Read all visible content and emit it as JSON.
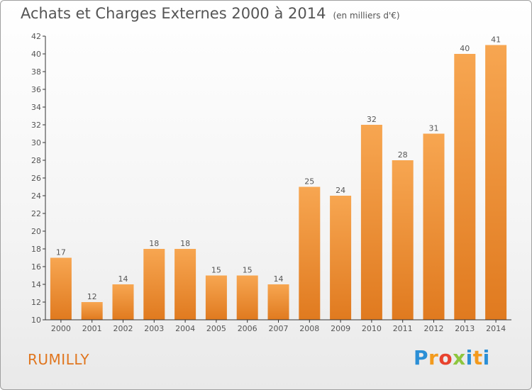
{
  "chart_data": {
    "type": "bar",
    "title": "Achats et Charges Externes 2000 à 2014",
    "subtitle": "(en milliers d'€)",
    "categories": [
      "2000",
      "2001",
      "2002",
      "2003",
      "2004",
      "2005",
      "2006",
      "2007",
      "2008",
      "2009",
      "2010",
      "2011",
      "2012",
      "2013",
      "2014"
    ],
    "values": [
      17,
      12,
      14,
      18,
      18,
      15,
      15,
      14,
      25,
      24,
      32,
      28,
      31,
      40,
      41
    ],
    "ylim": [
      10,
      42
    ],
    "yticks": [
      10,
      12,
      14,
      16,
      18,
      20,
      22,
      24,
      26,
      28,
      30,
      32,
      34,
      36,
      38,
      40,
      42
    ],
    "xlabel": "",
    "ylabel": "",
    "grid": false,
    "colors": {
      "bar_top": "#f7a651",
      "bar_bottom": "#e07a1f",
      "axis": "#333333",
      "text": "#555555"
    }
  },
  "footer": {
    "city": "RUMILLY",
    "logo_letters": [
      "P",
      "r",
      "o",
      "x",
      "i",
      "t",
      "i"
    ],
    "logo_colors": [
      "#2b8fd6",
      "#f39a1d",
      "#e8432e",
      "#8dc63f",
      "#2b8fd6",
      "#f39a1d",
      "#2b8fd6"
    ]
  }
}
